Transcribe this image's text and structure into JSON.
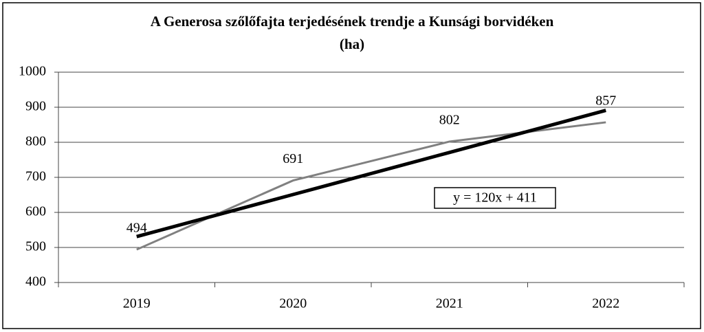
{
  "chart_data": {
    "type": "line",
    "title": [
      "A Generosa szőlőfajta terjedésének trendje a Kunsági borvidéken",
      "(ha)"
    ],
    "categories": [
      "2019",
      "2020",
      "2021",
      "2022"
    ],
    "series": [
      {
        "color": "#808080",
        "values": [
          494,
          691,
          802,
          857
        ]
      }
    ],
    "trendline": {
      "color": "#000000",
      "values": [
        531,
        651,
        771,
        891
      ],
      "label": "y = 120x + 411"
    },
    "ylim": [
      400,
      1000
    ],
    "yticks": [
      400,
      500,
      600,
      700,
      800,
      900,
      1000
    ],
    "grid": true
  }
}
